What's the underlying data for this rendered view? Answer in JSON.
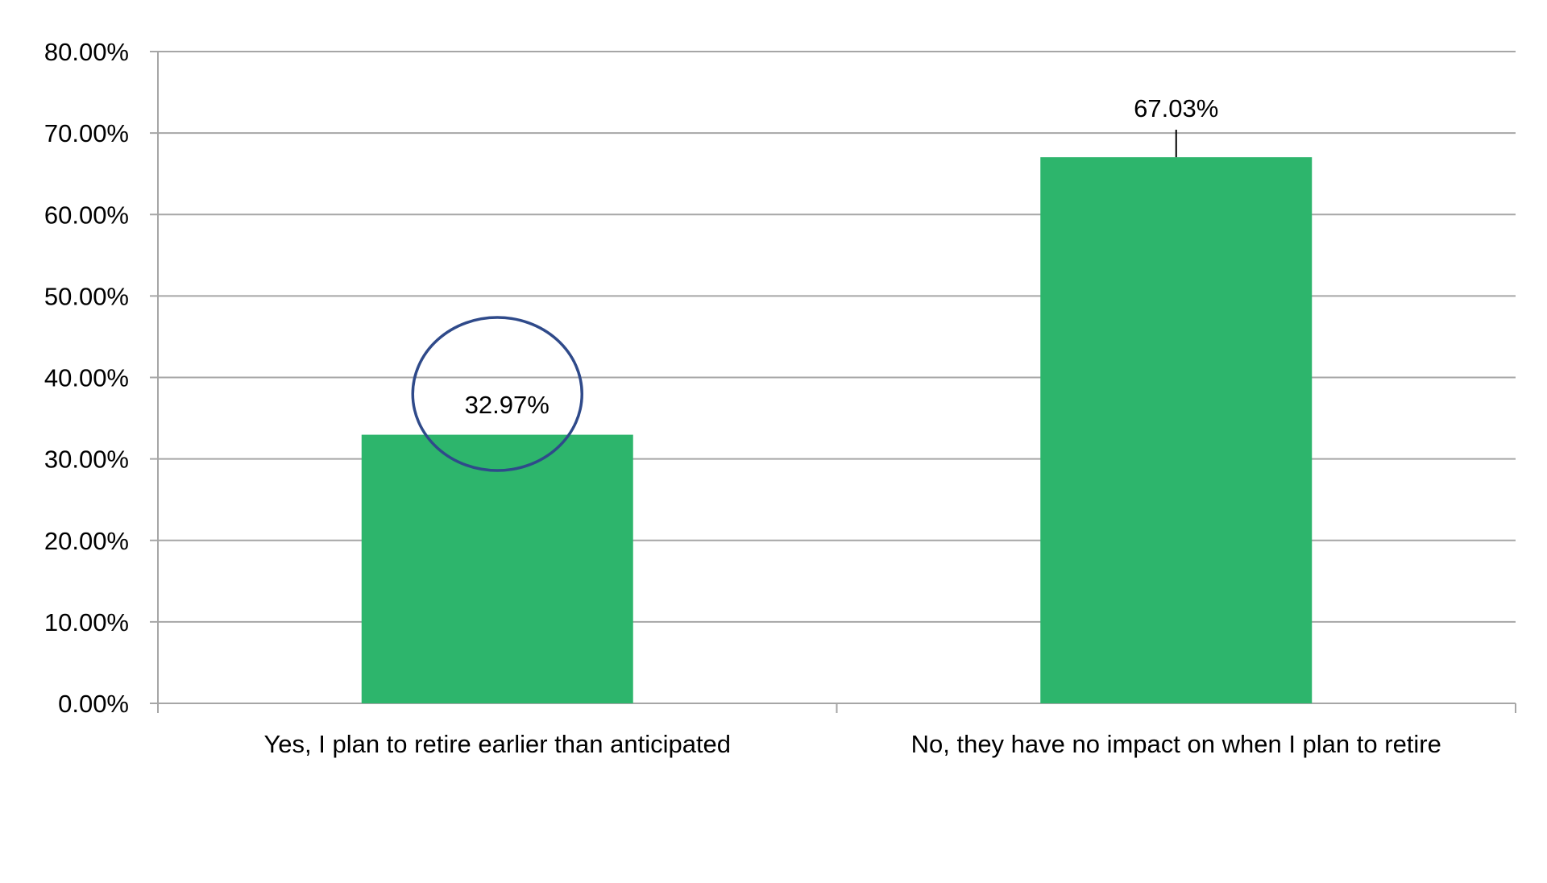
{
  "chart_data": {
    "type": "bar",
    "title": "",
    "xlabel": "",
    "ylabel": "",
    "categories": [
      "Yes, I plan to retire earlier than anticipated",
      "No, they have no impact on when I plan to retire"
    ],
    "values": [
      32.97,
      67.03
    ],
    "data_labels": [
      "32.97%",
      "67.03%"
    ],
    "ylim": [
      0,
      80
    ],
    "yticks": [
      0,
      10,
      20,
      30,
      40,
      50,
      60,
      70,
      80
    ],
    "ytick_labels": [
      "0.00%",
      "10.00%",
      "20.00%",
      "30.00%",
      "40.00%",
      "50.00%",
      "60.00%",
      "70.00%",
      "80.00%"
    ],
    "grid": true,
    "legend": "none",
    "bar_color": "#2DB56C",
    "gridline_color": "#A6A6A6",
    "annotation": {
      "shape": "ellipse",
      "target": "32.97%",
      "color": "#2F4A8A"
    }
  }
}
